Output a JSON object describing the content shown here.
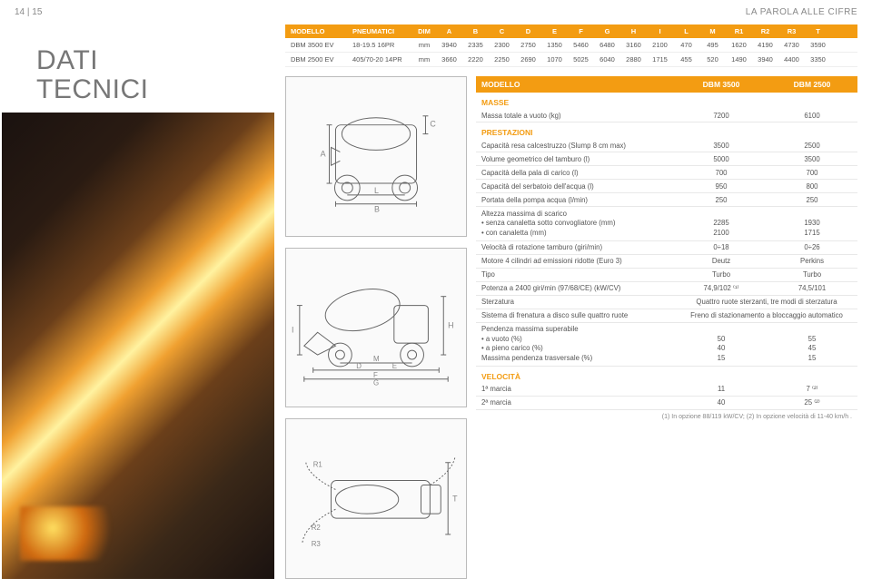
{
  "header": {
    "pagenum": "14 | 15",
    "title": "LA PAROLA ALLE CIFRE"
  },
  "bigtitle_l1": "DATI",
  "bigtitle_l2": "TECNICI",
  "dim": {
    "cols": [
      "MODELLO",
      "PNEUMATICI",
      "DIM",
      "A",
      "B",
      "C",
      "D",
      "E",
      "F",
      "G",
      "H",
      "I",
      "L",
      "M",
      "R1",
      "R2",
      "R3",
      "T"
    ],
    "rows": [
      [
        "DBM 3500 EV",
        "18-19.5 16PR",
        "mm",
        "3940",
        "2335",
        "2300",
        "2750",
        "1350",
        "5460",
        "6480",
        "3160",
        "2100",
        "470",
        "495",
        "1620",
        "4190",
        "4730",
        "3590"
      ],
      [
        "DBM 2500 EV",
        "405/70-20 14PR",
        "mm",
        "3660",
        "2220",
        "2250",
        "2690",
        "1070",
        "5025",
        "6040",
        "2880",
        "1715",
        "455",
        "520",
        "1490",
        "3940",
        "4400",
        "3350"
      ]
    ]
  },
  "spec_headers": [
    "MODELLO",
    "DBM 3500",
    "DBM 2500"
  ],
  "sections": [
    {
      "label": "MASSE",
      "rows": [
        {
          "k": "Massa totale a vuoto (kg)",
          "a": "7200",
          "b": "6100"
        }
      ]
    },
    {
      "label": "PRESTAZIONI",
      "rows": [
        {
          "k": "Capacità resa calcestruzzo (Slump 8 cm max)",
          "a": "3500",
          "b": "2500"
        },
        {
          "k": "Volume geometrico del tamburo (l)",
          "a": "5000",
          "b": "3500"
        },
        {
          "k": "Capacità della pala di carico (l)",
          "a": "700",
          "b": "700"
        },
        {
          "k": "Capacità del serbatoio dell'acqua (l)",
          "a": "950",
          "b": "800"
        },
        {
          "k": "Portata della pompa acqua (l/min)",
          "a": "250",
          "b": "250"
        },
        {
          "k": "Altezza massima di scarico\n• senza canaletta sotto convogliatore (mm)\n• con canaletta (mm)",
          "a": "\n2285\n2100",
          "b": "\n1930\n1715",
          "multi": true
        },
        {
          "k": "Velocità di rotazione tamburo (giri/min)",
          "a": "0÷18",
          "b": "0÷26"
        },
        {
          "k": "Motore 4 cilindri ad emissioni ridotte (Euro 3)",
          "a": "Deutz",
          "b": "Perkins"
        },
        {
          "k": "Tipo",
          "a": "Turbo",
          "b": "Turbo"
        },
        {
          "k": "Potenza a 2400 giri/min (97/68/CE) (kW/CV)",
          "a": "74,9/102 ⁽¹⁾",
          "b": "74,5/101"
        },
        {
          "k": "Sterzatura",
          "wide": true,
          "a": "Quattro ruote sterzanti, tre modi di sterzatura"
        },
        {
          "k": "Sistema di frenatura a disco sulle quattro ruote",
          "wide": true,
          "a": "Freno di stazionamento a bloccaggio automatico"
        },
        {
          "k": "Pendenza massima superabile\n• a vuoto (%)\n• a pieno carico (%)\nMassima pendenza trasversale (%)",
          "a": "\n50\n40\n15",
          "b": "\n55\n45\n15",
          "multi": true
        }
      ]
    },
    {
      "label": "VELOCITÀ",
      "rows": [
        {
          "k": "1ª marcia",
          "a": "11",
          "b": "7 ⁽²⁾"
        },
        {
          "k": "2ª marcia",
          "a": "40",
          "b": "25 ⁽²⁾"
        }
      ]
    }
  ],
  "footnote": "(1) In opzione 88/119 kW/CV; (2) In opzione velocità di 11-40 km/h .",
  "diag_labels": {
    "A": "A",
    "B": "B",
    "C": "C",
    "L": "L",
    "I": "I",
    "M": "M",
    "H": "H",
    "D": "D",
    "E": "E",
    "F": "F",
    "G": "G",
    "R1": "R1",
    "R2": "R2",
    "R3": "R3",
    "T": "T"
  },
  "colors": {
    "accent": "#f39c12",
    "text": "#555",
    "border": "#e8e8e8"
  }
}
